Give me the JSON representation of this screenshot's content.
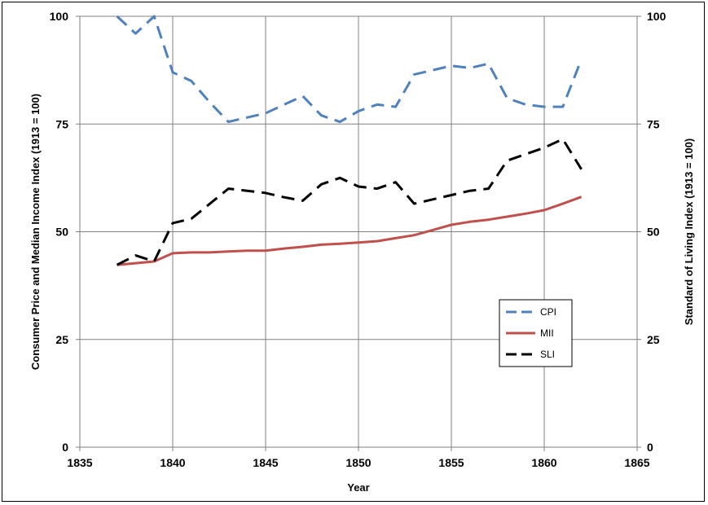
{
  "chart_data": {
    "type": "line",
    "xlabel": "Year",
    "ylabel_left": "Consumer Price and Median Income Index (1913 = 100)",
    "ylabel_right": "Standard of Living Index (1913 = 100)",
    "xlim": [
      1835,
      1865
    ],
    "ylim": [
      0,
      100
    ],
    "x_ticks": [
      "1835",
      "1840",
      "1845",
      "1850",
      "1855",
      "1860",
      "1865"
    ],
    "y_ticks": [
      "0",
      "25",
      "50",
      "75",
      "100"
    ],
    "y_ticks_right": [
      "0",
      "25",
      "50",
      "75",
      "100"
    ],
    "grid": true,
    "legend_position": "right-center",
    "series": [
      {
        "name": "CPI",
        "color": "#4F81BD",
        "dash": "dashed",
        "x": [
          1837,
          1838,
          1839,
          1840,
          1841,
          1842,
          1843,
          1844,
          1845,
          1846,
          1847,
          1848,
          1849,
          1850,
          1851,
          1852,
          1853,
          1854,
          1855,
          1856,
          1857,
          1858,
          1859,
          1860,
          1861,
          1862
        ],
        "values": [
          100,
          96,
          100,
          87,
          85,
          80,
          75.5,
          76.5,
          77.5,
          79.5,
          81.5,
          77,
          75.5,
          78,
          79.5,
          79,
          86.5,
          87.5,
          88.5,
          88,
          89,
          81,
          79.5,
          79,
          79,
          90
        ]
      },
      {
        "name": "MII",
        "color": "#C0504D",
        "dash": "solid",
        "x": [
          1837,
          1838,
          1839,
          1840,
          1841,
          1842,
          1843,
          1844,
          1845,
          1846,
          1847,
          1848,
          1849,
          1850,
          1851,
          1852,
          1853,
          1854,
          1855,
          1856,
          1857,
          1858,
          1859,
          1860,
          1861,
          1862
        ],
        "values": [
          42.3,
          42.7,
          43.1,
          45,
          45.2,
          45.2,
          45.4,
          45.6,
          45.6,
          46.1,
          46.5,
          47,
          47.2,
          47.5,
          47.8,
          48.5,
          49.2,
          50.4,
          51.6,
          52.3,
          52.8,
          53.5,
          54.2,
          55,
          56.5,
          58.1
        ]
      },
      {
        "name": "SLI",
        "color": "#000000",
        "dash": "dashed",
        "x": [
          1837,
          1838,
          1839,
          1840,
          1841,
          1842,
          1843,
          1844,
          1845,
          1846,
          1847,
          1848,
          1849,
          1850,
          1851,
          1852,
          1853,
          1854,
          1855,
          1856,
          1857,
          1858,
          1859,
          1860,
          1861,
          1862
        ],
        "values": [
          42.3,
          44.5,
          43.1,
          52,
          53,
          56.5,
          60,
          59.5,
          59,
          58,
          57.2,
          61,
          62.5,
          60.5,
          60,
          61.5,
          56.5,
          57.5,
          58.5,
          59.5,
          60,
          66.5,
          68,
          69.5,
          71.5,
          64.5
        ]
      }
    ]
  }
}
